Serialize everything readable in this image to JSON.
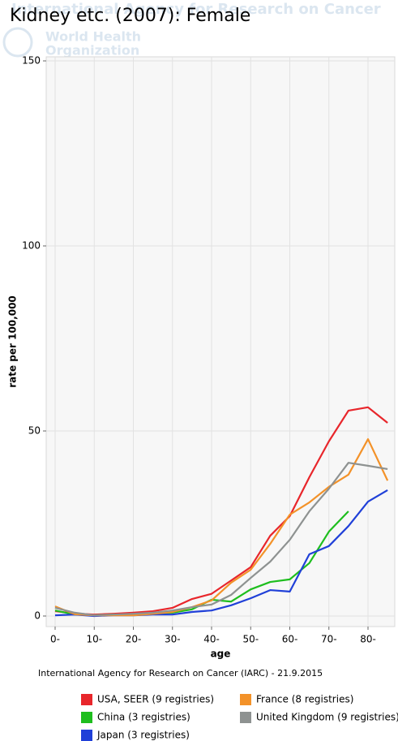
{
  "chart_data": {
    "type": "line",
    "title": "Kidney etc. (2007): Female",
    "watermark": [
      "International Agency for Research on Cancer",
      "World Health",
      "Organization"
    ],
    "source": "International Agency for Research on Cancer (IARC) - 21.9.2015",
    "x_label": "age",
    "y_label": "rate per 100,000",
    "categories": [
      "0-",
      null,
      "10-",
      null,
      "20-",
      null,
      "30-",
      null,
      "40-",
      null,
      "50-",
      null,
      "60-",
      null,
      "70-",
      null,
      "80-",
      null
    ],
    "ylim": [
      -2.85,
      151.1
    ],
    "yticks": [
      0,
      50,
      100,
      150
    ],
    "grid": true,
    "series": [
      {
        "name": "USA, SEER (9 registries)",
        "color": "#e8262b",
        "values": [
          1.3,
          0.7,
          0.4,
          0.6,
          0.9,
          1.3,
          2.2,
          4.6,
          6.0,
          9.6,
          13.2,
          21.7,
          27.0,
          37.5,
          47.2,
          55.5,
          56.4,
          52.2
        ]
      },
      {
        "name": "China (3 registries)",
        "color": "#1ebe1e",
        "values": [
          1.5,
          0.4,
          0.2,
          0.4,
          0.4,
          0.6,
          0.9,
          1.8,
          4.4,
          3.9,
          7.2,
          9.2,
          9.9,
          14.3,
          22.8,
          28.3,
          null,
          null
        ]
      },
      {
        "name": "Japan (3 registries)",
        "color": "#2040d8",
        "values": [
          0.2,
          0.4,
          0.0,
          0.2,
          0.2,
          0.4,
          0.4,
          1.1,
          1.5,
          2.9,
          4.8,
          7.0,
          6.6,
          16.7,
          18.9,
          24.3,
          30.9,
          34.0
        ]
      },
      {
        "name": "France (8 registries)",
        "color": "#f39229",
        "values": [
          2.6,
          0.5,
          0.2,
          0.2,
          0.2,
          0.6,
          1.1,
          2.4,
          4.2,
          9.0,
          12.5,
          19.5,
          27.4,
          30.7,
          34.9,
          38.2,
          47.8,
          36.6
        ]
      },
      {
        "name": "United Kingdom (9 registries)",
        "color": "#8e9291",
        "values": [
          2.2,
          0.9,
          0.2,
          0.4,
          0.6,
          0.9,
          1.5,
          2.4,
          3.1,
          5.7,
          10.3,
          14.7,
          20.6,
          28.3,
          34.4,
          41.4,
          40.6,
          39.7
        ]
      }
    ]
  }
}
